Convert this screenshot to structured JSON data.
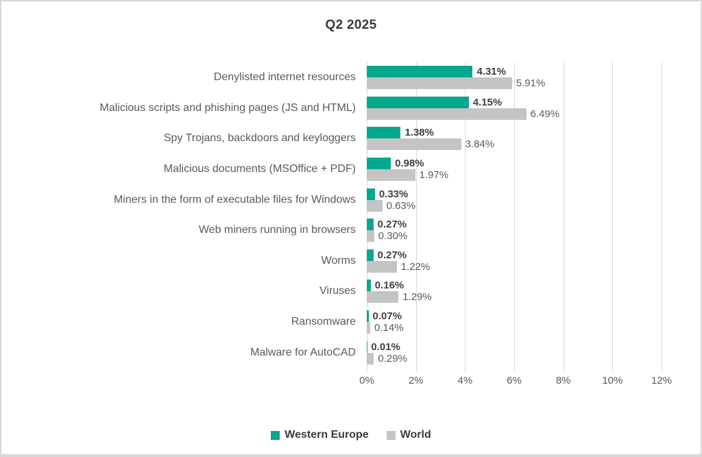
{
  "title": "Q2 2025",
  "chart_data": {
    "type": "bar",
    "orientation": "horizontal",
    "title": "Q2 2025",
    "categories": [
      "Denylisted internet resources",
      "Malicious scripts and phishing pages (JS and HTML)",
      "Spy Trojans, backdoors and keyloggers",
      "Malicious documents (MSOffice + PDF)",
      "Miners in the form of executable files for Windows",
      "Web miners running in browsers",
      "Worms",
      "Viruses",
      "Ransomware",
      "Malware for AutoCAD"
    ],
    "series": [
      {
        "name": "Western Europe",
        "color": "#00a88e",
        "values": [
          4.31,
          4.15,
          1.38,
          0.98,
          0.33,
          0.27,
          0.27,
          0.16,
          0.07,
          0.01
        ],
        "labels": [
          "4.31%",
          "4.15%",
          "1.38%",
          "0.98%",
          "0.33%",
          "0.27%",
          "0.27%",
          "0.16%",
          "0.07%",
          "0.01%"
        ]
      },
      {
        "name": "World",
        "color": "#c4c4c4",
        "values": [
          5.91,
          6.49,
          3.84,
          1.97,
          0.63,
          0.3,
          1.22,
          1.29,
          0.14,
          0.29
        ],
        "labels": [
          "5.91%",
          "6.49%",
          "3.84%",
          "1.97%",
          "0.63%",
          "0.30%",
          "1.22%",
          "1.29%",
          "0.14%",
          "0.29%"
        ]
      }
    ],
    "xlim": [
      0,
      12
    ],
    "x_ticks": [
      "0%",
      "2%",
      "4%",
      "6%",
      "8%",
      "10%",
      "12%"
    ],
    "grid": "vertical",
    "legend_position": "bottom",
    "colors": {
      "gridline": "#d9d9d9",
      "category_label": "#595959",
      "value_label_primary": "#3f3f3f",
      "value_label_secondary": "#595959",
      "title": "#3a3a3a"
    }
  }
}
